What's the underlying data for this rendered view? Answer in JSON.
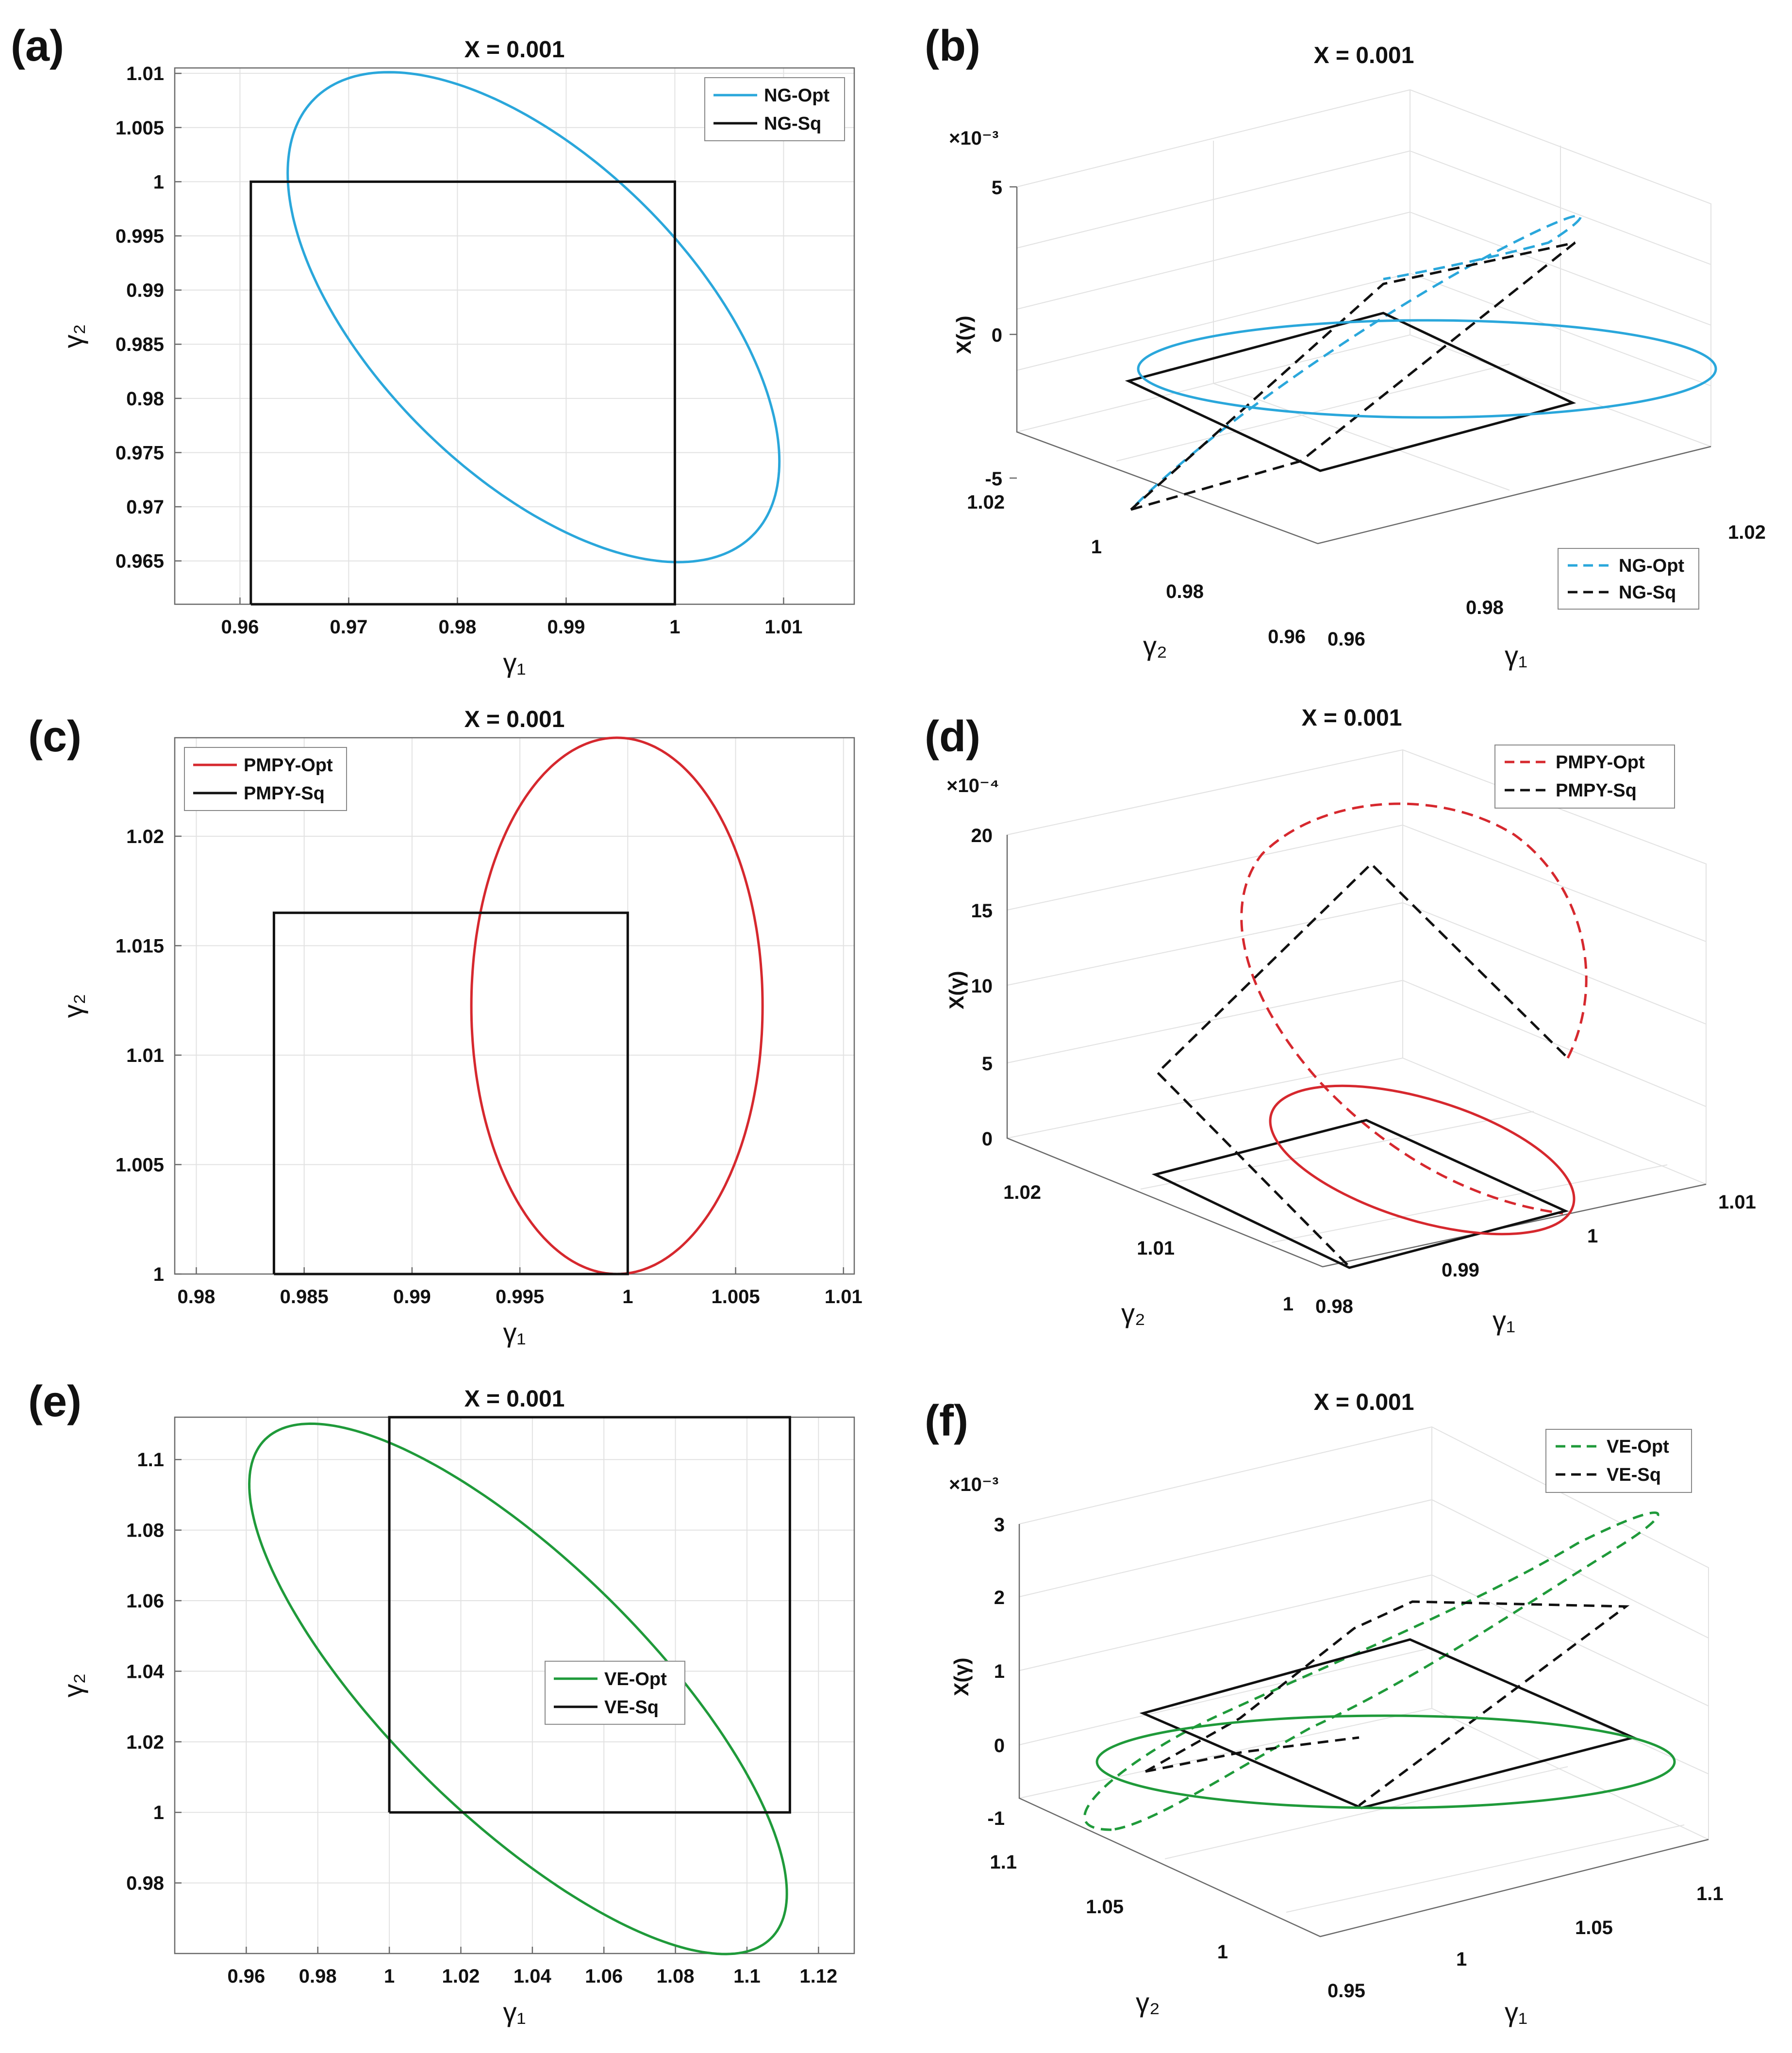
{
  "figure": {
    "panel_labels": [
      "(a)",
      "(b)",
      "(c)",
      "(d)",
      "(e)",
      "(f)"
    ],
    "colors": {
      "NG": "#2aa7db",
      "PMPY": "#d6282e",
      "VE": "#1f9a3a",
      "Sq": "#111111"
    }
  },
  "chart_data": [
    {
      "panel": "(a)",
      "type": "line",
      "title": "X = 0.001",
      "xlabel": "γ₁",
      "ylabel": "γ₂",
      "xlim": [
        0.954,
        1.0165
      ],
      "ylim": [
        0.961,
        1.0105
      ],
      "xticks": [
        0.96,
        0.97,
        0.98,
        0.99,
        1.0,
        1.01
      ],
      "xtick_labels": [
        "0.96",
        "0.97",
        "0.98",
        "0.99",
        "1",
        "1.01"
      ],
      "yticks": [
        0.965,
        0.97,
        0.975,
        0.98,
        0.985,
        0.99,
        0.995,
        1.0,
        1.005,
        1.01
      ],
      "ytick_labels": [
        "0.965",
        "0.97",
        "0.975",
        "0.98",
        "0.985",
        "0.99",
        "0.995",
        "1",
        "1.005",
        "1.01"
      ],
      "grid": true,
      "legend_position": "top-right",
      "series": [
        {
          "name": "NG-Opt",
          "color": "#2aa7db",
          "style": "solid",
          "kind": "ellipse",
          "center": [
            0.987,
            0.9875
          ],
          "semi_axes": [
            0.0285,
            0.0145
          ],
          "angle_deg": -45
        },
        {
          "name": "NG-Sq",
          "color": "#111111",
          "style": "solid",
          "kind": "polygon",
          "points": [
            [
              0.961,
              0.961
            ],
            [
              1.0,
              0.961
            ],
            [
              1.0,
              1.0
            ],
            [
              0.961,
              1.0
            ],
            [
              0.961,
              0.961
            ]
          ]
        }
      ]
    },
    {
      "panel": "(b)",
      "type": "line3d",
      "title": "X = 0.001",
      "xlabel": "γ₁",
      "ylabel": "γ₂",
      "zlabel": "X(γ)",
      "zscale_label": "×10⁻³",
      "xlim": [
        0.96,
        1.02
      ],
      "ylim": [
        0.96,
        1.02
      ],
      "zlim": [
        -5,
        5
      ],
      "xtick_labels": [
        "0.96",
        "0.98",
        "1.02"
      ],
      "ytick_labels": [
        "0.96",
        "0.98",
        "1",
        "1.02"
      ],
      "ztick_labels": [
        "-5",
        "0",
        "5"
      ],
      "grid": true,
      "legend_position": "bottom-right",
      "series": [
        {
          "name": "NG-Opt",
          "color": "#2aa7db",
          "style": "dashed"
        },
        {
          "name": "NG-Sq",
          "color": "#111111",
          "style": "dashed"
        }
      ]
    },
    {
      "panel": "(c)",
      "type": "line",
      "title": "X = 0.001",
      "xlabel": "γ₁",
      "ylabel": "γ₂",
      "xlim": [
        0.979,
        1.0105
      ],
      "ylim": [
        1.0,
        1.0245
      ],
      "xticks": [
        0.98,
        0.985,
        0.99,
        0.995,
        1.0,
        1.005,
        1.01
      ],
      "xtick_labels": [
        "0.98",
        "0.985",
        "0.99",
        "0.995",
        "1",
        "1.005",
        "1.01"
      ],
      "yticks": [
        1.0,
        1.005,
        1.01,
        1.015,
        1.02
      ],
      "ytick_labels": [
        "1",
        "1.005",
        "1.01",
        "1.015",
        "1.02"
      ],
      "grid": true,
      "legend_position": "top-left",
      "series": [
        {
          "name": "PMPY-Opt",
          "color": "#d6282e",
          "style": "solid",
          "kind": "ellipse",
          "center": [
            0.9995,
            1.01225
          ],
          "semi_axes": [
            0.00675,
            0.01225
          ],
          "angle_deg": 0
        },
        {
          "name": "PMPY-Sq",
          "color": "#111111",
          "style": "solid",
          "kind": "polygon",
          "points": [
            [
              0.9836,
              1.0
            ],
            [
              1.0,
              1.0
            ],
            [
              1.0,
              1.0165
            ],
            [
              0.9836,
              1.0165
            ],
            [
              0.9836,
              1.0
            ]
          ]
        }
      ]
    },
    {
      "panel": "(d)",
      "type": "line3d",
      "title": "X = 0.001",
      "xlabel": "γ₁",
      "ylabel": "γ₂",
      "zlabel": "X(γ)",
      "zscale_label": "×10⁻⁴",
      "xlim": [
        0.98,
        1.01
      ],
      "ylim": [
        1.0,
        1.025
      ],
      "zlim": [
        0,
        20
      ],
      "xtick_labels": [
        "0.98",
        "0.99",
        "1",
        "1.01"
      ],
      "ytick_labels": [
        "1",
        "1.01",
        "1.02"
      ],
      "ztick_labels": [
        "0",
        "5",
        "10",
        "15",
        "20"
      ],
      "grid": true,
      "legend_position": "top-right",
      "series": [
        {
          "name": "PMPY-Opt",
          "color": "#d6282e",
          "style": "dashed"
        },
        {
          "name": "PMPY-Sq",
          "color": "#111111",
          "style": "dashed"
        }
      ]
    },
    {
      "panel": "(e)",
      "type": "line",
      "title": "X = 0.001",
      "xlabel": "γ₁",
      "ylabel": "γ₂",
      "xlim": [
        0.94,
        1.13
      ],
      "ylim": [
        0.96,
        1.112
      ],
      "xticks": [
        0.96,
        0.98,
        1.0,
        1.02,
        1.04,
        1.06,
        1.08,
        1.1,
        1.12
      ],
      "xtick_labels": [
        "0.96",
        "0.98",
        "1",
        "1.02",
        "1.04",
        "1.06",
        "1.08",
        "1.1",
        "1.12"
      ],
      "yticks": [
        0.98,
        1.0,
        1.02,
        1.04,
        1.06,
        1.08,
        1.1
      ],
      "ytick_labels": [
        "0.98",
        "1",
        "1.02",
        "1.04",
        "1.06",
        "1.08",
        "1.1"
      ],
      "grid": true,
      "legend_position": "center-right",
      "series": [
        {
          "name": "VE-Opt",
          "color": "#1f9a3a",
          "style": "solid",
          "kind": "ellipse",
          "center": [
            1.036,
            1.035
          ],
          "semi_axes": [
            0.1,
            0.036
          ],
          "angle_deg": -45
        },
        {
          "name": "VE-Sq",
          "color": "#111111",
          "style": "solid",
          "kind": "polygon",
          "points": [
            [
              1.0,
              1.0
            ],
            [
              1.112,
              1.0
            ],
            [
              1.112,
              1.112
            ],
            [
              1.0,
              1.112
            ],
            [
              1.0,
              1.0
            ]
          ]
        }
      ]
    },
    {
      "panel": "(f)",
      "type": "line3d",
      "title": "X = 0.001",
      "xlabel": "γ₁",
      "ylabel": "γ₂",
      "zlabel": "X(γ)",
      "zscale_label": "×10⁻³",
      "xlim": [
        0.95,
        1.1
      ],
      "ylim": [
        0.95,
        1.1
      ],
      "zlim": [
        -1,
        3
      ],
      "xtick_labels": [
        "0.95",
        "1",
        "1.05",
        "1.1"
      ],
      "ytick_labels": [
        "1",
        "1.05",
        "1.1"
      ],
      "ztick_labels": [
        "-1",
        "0",
        "1",
        "2",
        "3"
      ],
      "grid": true,
      "legend_position": "top-right",
      "series": [
        {
          "name": "VE-Opt",
          "color": "#1f9a3a",
          "style": "dashed"
        },
        {
          "name": "VE-Sq",
          "color": "#111111",
          "style": "dashed"
        }
      ]
    }
  ]
}
